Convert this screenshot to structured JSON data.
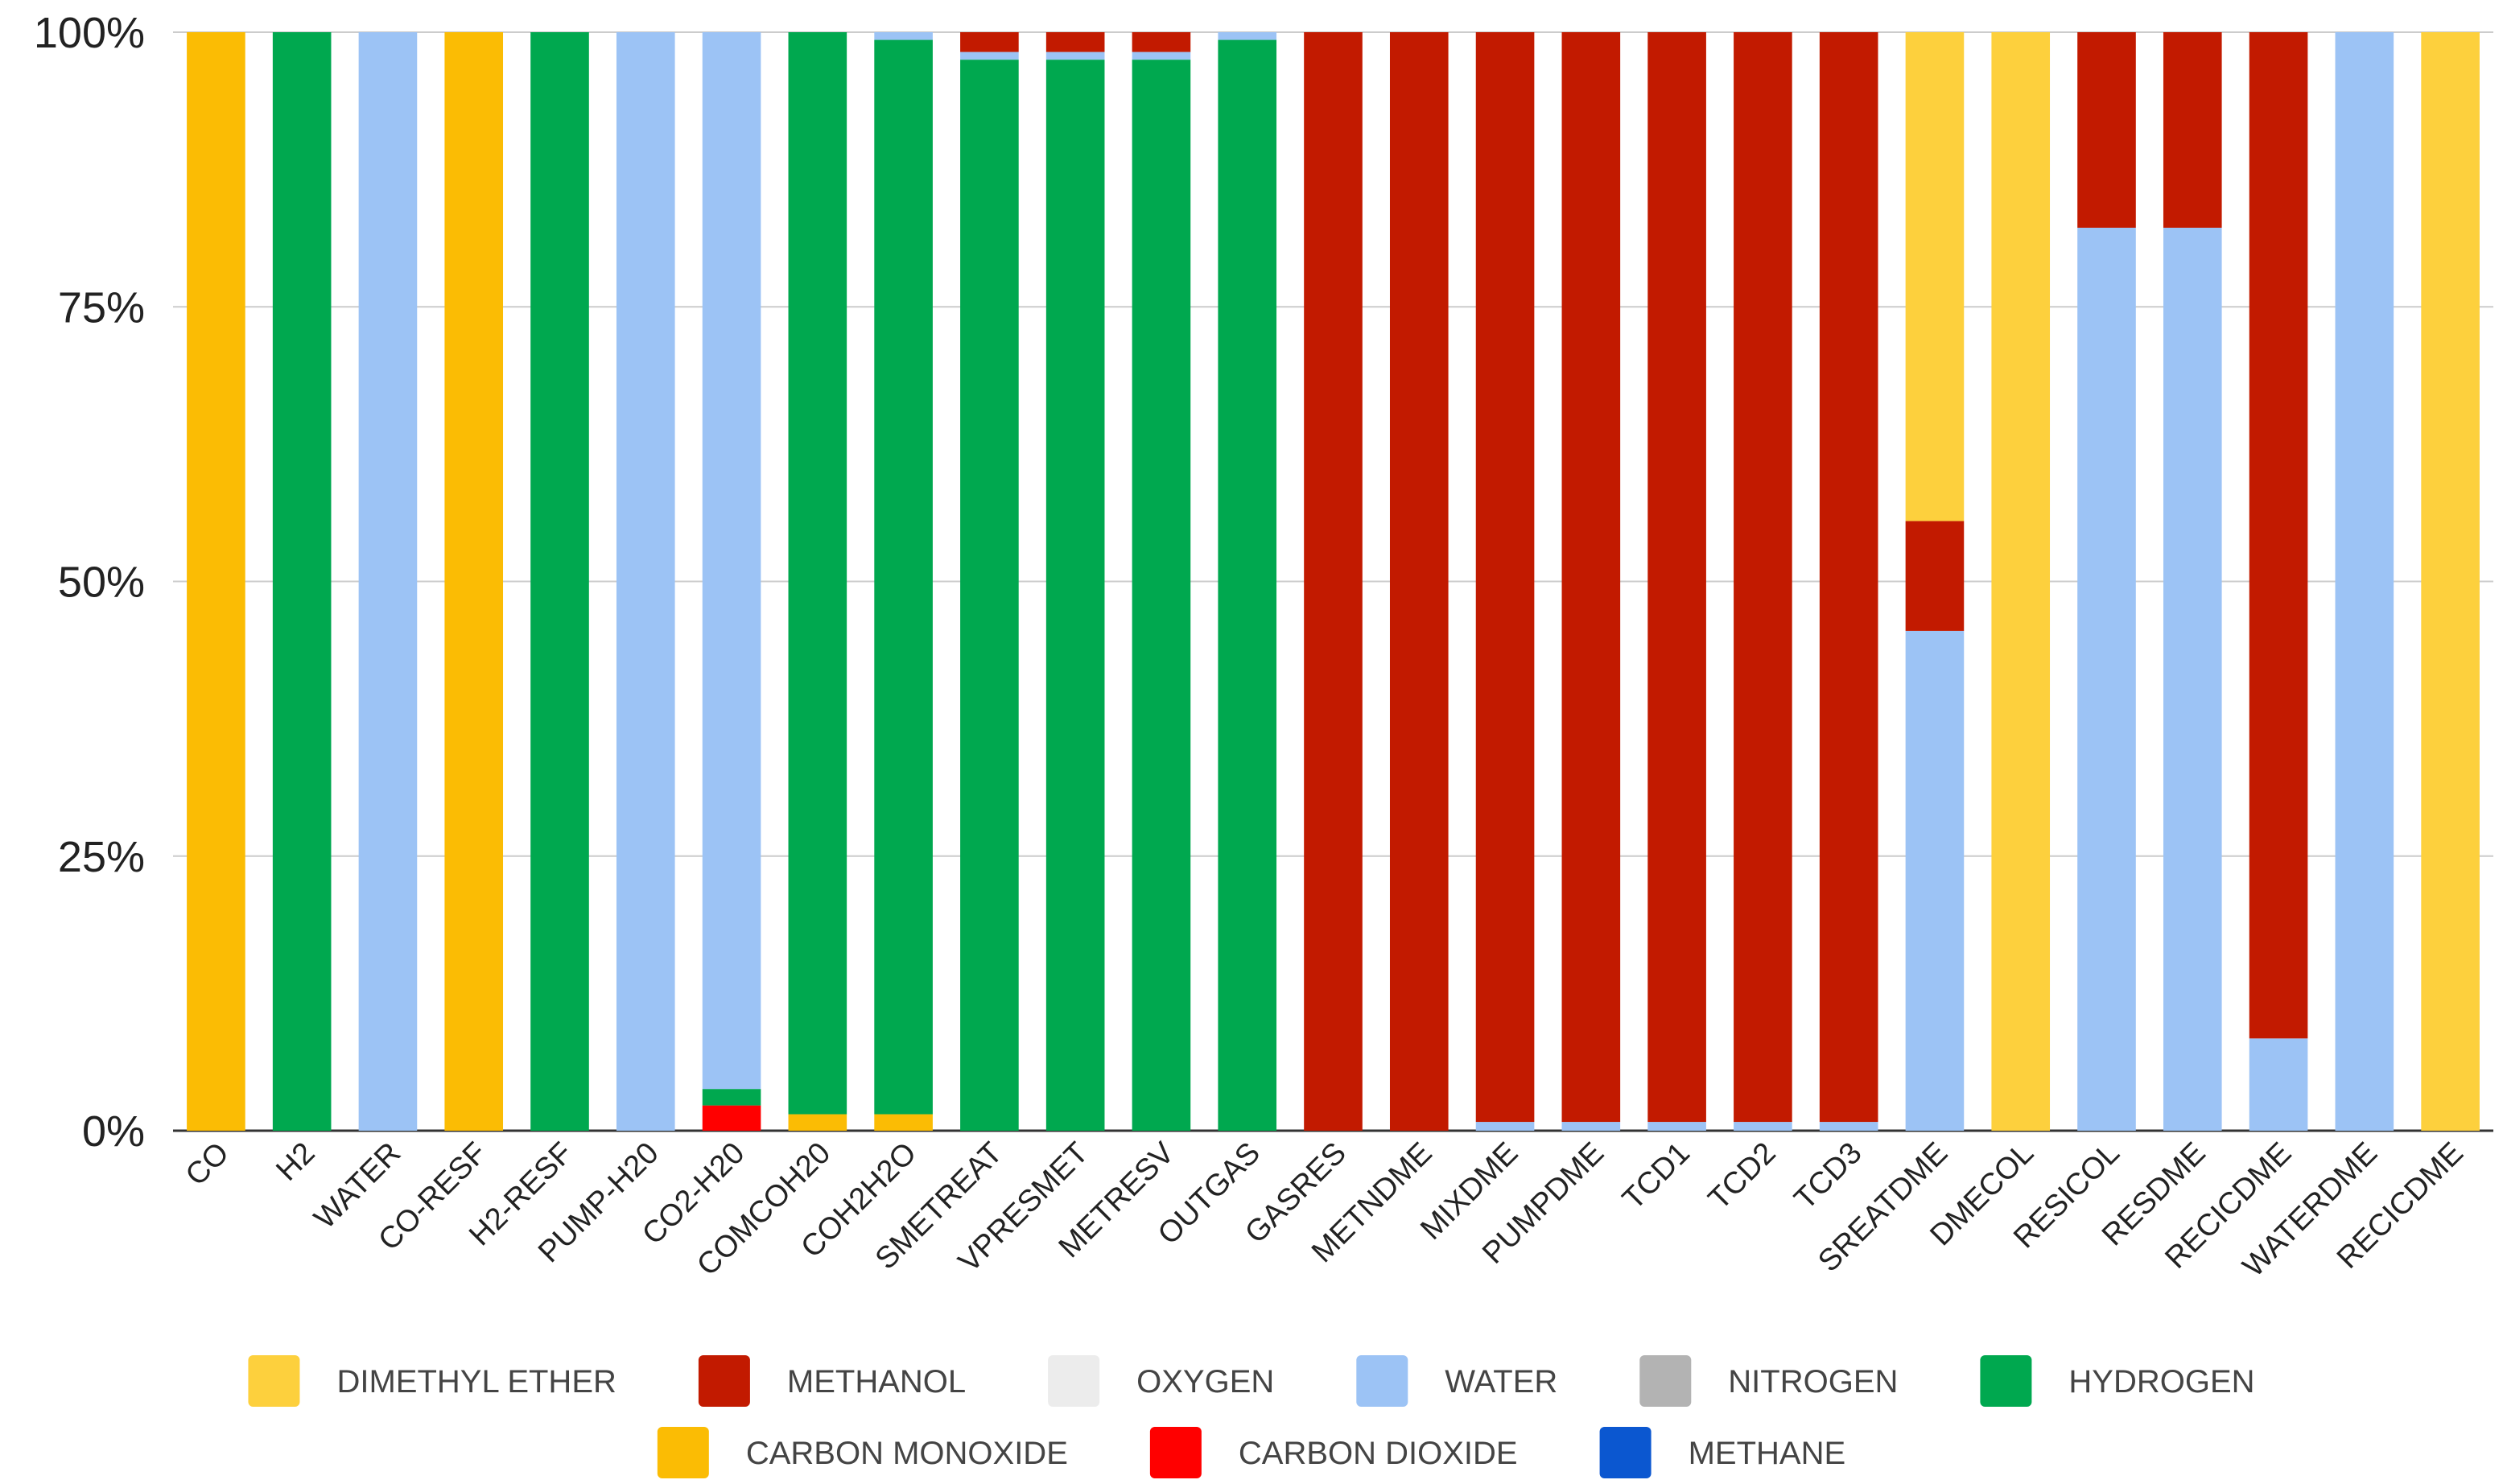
{
  "chart_data": {
    "type": "bar",
    "stacked": true,
    "normalized": true,
    "title": "",
    "xlabel": "",
    "ylabel": "",
    "ylim": [
      0,
      100
    ],
    "y_ticks": [
      "0%",
      "25%",
      "50%",
      "75%",
      "100%"
    ],
    "grid": true,
    "legend_position": "bottom",
    "categories": [
      "CO",
      "H2",
      "WATER",
      "CO-RESF",
      "H2-RESF",
      "PUMP-H20",
      "CO2-H20",
      "COMCOH20",
      "COH2H2O",
      "SMETREAT",
      "VPRESMET",
      "METRESV",
      "OUTGAS",
      "GASRES",
      "METNDME",
      "MIXDME",
      "PUMPDME",
      "TCD1",
      "TCD2",
      "TCD3",
      "SREATDME",
      "DMECOL",
      "RESICOL",
      "RESDME",
      "RECICDME",
      "WATERDME",
      "RECICDME"
    ],
    "series": [
      {
        "name": "CARBON MONOXIDE",
        "color": "#fbbc04",
        "values": [
          100,
          0,
          0,
          100,
          0,
          0,
          0,
          1.5,
          1.5,
          0,
          0,
          0,
          0,
          0,
          0,
          0,
          0,
          0,
          0,
          0,
          0,
          0,
          0,
          0,
          0,
          0,
          0
        ]
      },
      {
        "name": "CARBON DIOXIDE",
        "color": "#ff0000",
        "values": [
          0,
          0,
          0,
          0,
          0,
          0,
          2.3,
          0,
          0,
          0,
          0,
          0,
          0,
          0,
          0,
          0,
          0,
          0,
          0,
          0,
          0,
          0,
          0,
          0,
          0,
          0,
          0
        ]
      },
      {
        "name": "METHANE",
        "color": "#0b57d0",
        "values": [
          0,
          0,
          0,
          0,
          0,
          0,
          0,
          0,
          0,
          0,
          0,
          0,
          0,
          0,
          0,
          0,
          0,
          0,
          0,
          0,
          0,
          0,
          0,
          0,
          0,
          0,
          0
        ]
      },
      {
        "name": "HYDROGEN",
        "color": "#00a84f",
        "values": [
          0,
          100,
          0,
          0,
          100,
          0,
          1.5,
          98.5,
          97.8,
          97.5,
          97.5,
          97.5,
          99.3,
          0,
          0,
          0,
          0,
          0,
          0,
          0,
          0,
          0,
          0,
          0,
          0,
          0,
          0
        ]
      },
      {
        "name": "NITROGEN",
        "color": "#b3b3b3",
        "values": [
          0,
          0,
          0,
          0,
          0,
          0,
          0,
          0,
          0,
          0,
          0,
          0,
          0,
          0,
          0,
          0,
          0,
          0,
          0,
          0,
          0,
          0,
          0,
          0,
          0,
          0,
          0
        ]
      },
      {
        "name": "WATER",
        "color": "#9cc3f5",
        "values": [
          0,
          0,
          100,
          0,
          0,
          100,
          96.2,
          0,
          0.7,
          0.7,
          0.7,
          0.7,
          0.7,
          0,
          0,
          0.8,
          0.8,
          0.8,
          0.8,
          0.8,
          45.5,
          0,
          82.2,
          82.2,
          8.4,
          100,
          0
        ]
      },
      {
        "name": "OXYGEN",
        "color": "#ececec",
        "values": [
          0,
          0,
          0,
          0,
          0,
          0,
          0,
          0,
          0,
          0,
          0,
          0,
          0,
          0,
          0,
          0,
          0,
          0,
          0,
          0,
          0,
          0,
          0,
          0,
          0,
          0,
          0
        ]
      },
      {
        "name": "METHANOL",
        "color": "#c21a00",
        "values": [
          0,
          0,
          0,
          0,
          0,
          0,
          0,
          0,
          0,
          1.8,
          1.8,
          1.8,
          0,
          100,
          100,
          99.2,
          99.2,
          99.2,
          99.2,
          99.2,
          10,
          0,
          17.8,
          17.8,
          91.6,
          0,
          0
        ]
      },
      {
        "name": "DIMETHYL ETHER",
        "color": "#fdd03d",
        "values": [
          0,
          0,
          0,
          0,
          0,
          0,
          0,
          0,
          0,
          0,
          0,
          0,
          0,
          0,
          0,
          0,
          0,
          0,
          0,
          0,
          44.5,
          100,
          0,
          0,
          0,
          0,
          100
        ]
      }
    ],
    "legend": [
      [
        "DIMETHYL ETHER",
        "METHANOL",
        "OXYGEN",
        "WATER",
        "NITROGEN",
        "HYDROGEN"
      ],
      [
        "CARBON MONOXIDE",
        "CARBON DIOXIDE",
        "METHANE"
      ]
    ]
  }
}
